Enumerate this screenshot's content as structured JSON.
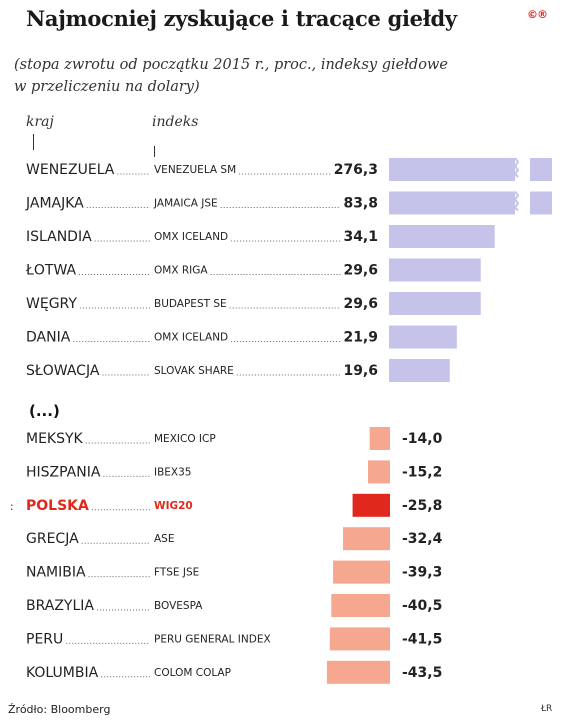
{
  "title": "Najmocniej zyskujące i tracące giełdy",
  "logo": "©®",
  "subtitle_line1": "(stopa zwrotu od początku 2015 r., proc., indeksy giełdowe",
  "subtitle_line2": "w przeliczeniu na dolary)",
  "col_country": "kraj",
  "col_index": "indeks",
  "separator": "(...)",
  "source": "Źródło: Bloomberg",
  "credit": "ŁR",
  "colors": {
    "positive": "#c6c3eb",
    "negative": "#f5a88f",
    "highlight_bar": "#e0281c",
    "highlight_text": "#e0281c"
  },
  "chart_data": {
    "type": "bar",
    "orientation": "horizontal",
    "axis_break": true,
    "gainers": [
      {
        "country": "WENEZUELA",
        "index": "VENEZUELA SM",
        "value": 276.3,
        "label": "276,3"
      },
      {
        "country": "JAMAJKA",
        "index": "JAMAICA JSE",
        "value": 83.8,
        "label": "83,8"
      },
      {
        "country": "ISLANDIA",
        "index": "OMX ICELAND",
        "value": 34.1,
        "label": "34,1"
      },
      {
        "country": "ŁOTWA",
        "index": "OMX RIGA",
        "value": 29.6,
        "label": "29,6"
      },
      {
        "country": "WĘGRY",
        "index": "BUDAPEST SE",
        "value": 29.6,
        "label": "29,6"
      },
      {
        "country": "DANIA",
        "index": "OMX ICELAND",
        "value": 21.9,
        "label": "21,9"
      },
      {
        "country": "SŁOWACJA",
        "index": "SLOVAK SHARE",
        "value": 19.6,
        "label": "19,6"
      }
    ],
    "losers": [
      {
        "country": "MEKSYK",
        "index": "MEXICO ICP",
        "value": -14.0,
        "label": "-14,0"
      },
      {
        "country": "HISZPANIA",
        "index": "IBEX35",
        "value": -15.2,
        "label": "-15,2"
      },
      {
        "country": "POLSKA",
        "index": "WIG20",
        "value": -25.8,
        "label": "-25,8",
        "highlight": true
      },
      {
        "country": "GRECJA",
        "index": "ASE",
        "value": -32.4,
        "label": "-32,4"
      },
      {
        "country": "NAMIBIA",
        "index": "FTSE JSE",
        "value": -39.3,
        "label": "-39,3"
      },
      {
        "country": "BRAZYLIA",
        "index": "BOVESPA",
        "value": -40.5,
        "label": "-40,5"
      },
      {
        "country": "PERU",
        "index": "PERU GENERAL INDEX",
        "value": -41.5,
        "label": "-41,5"
      },
      {
        "country": "KOLUMBIA",
        "index": "COLOM COLAP",
        "value": -43.5,
        "label": "-43,5"
      }
    ]
  }
}
